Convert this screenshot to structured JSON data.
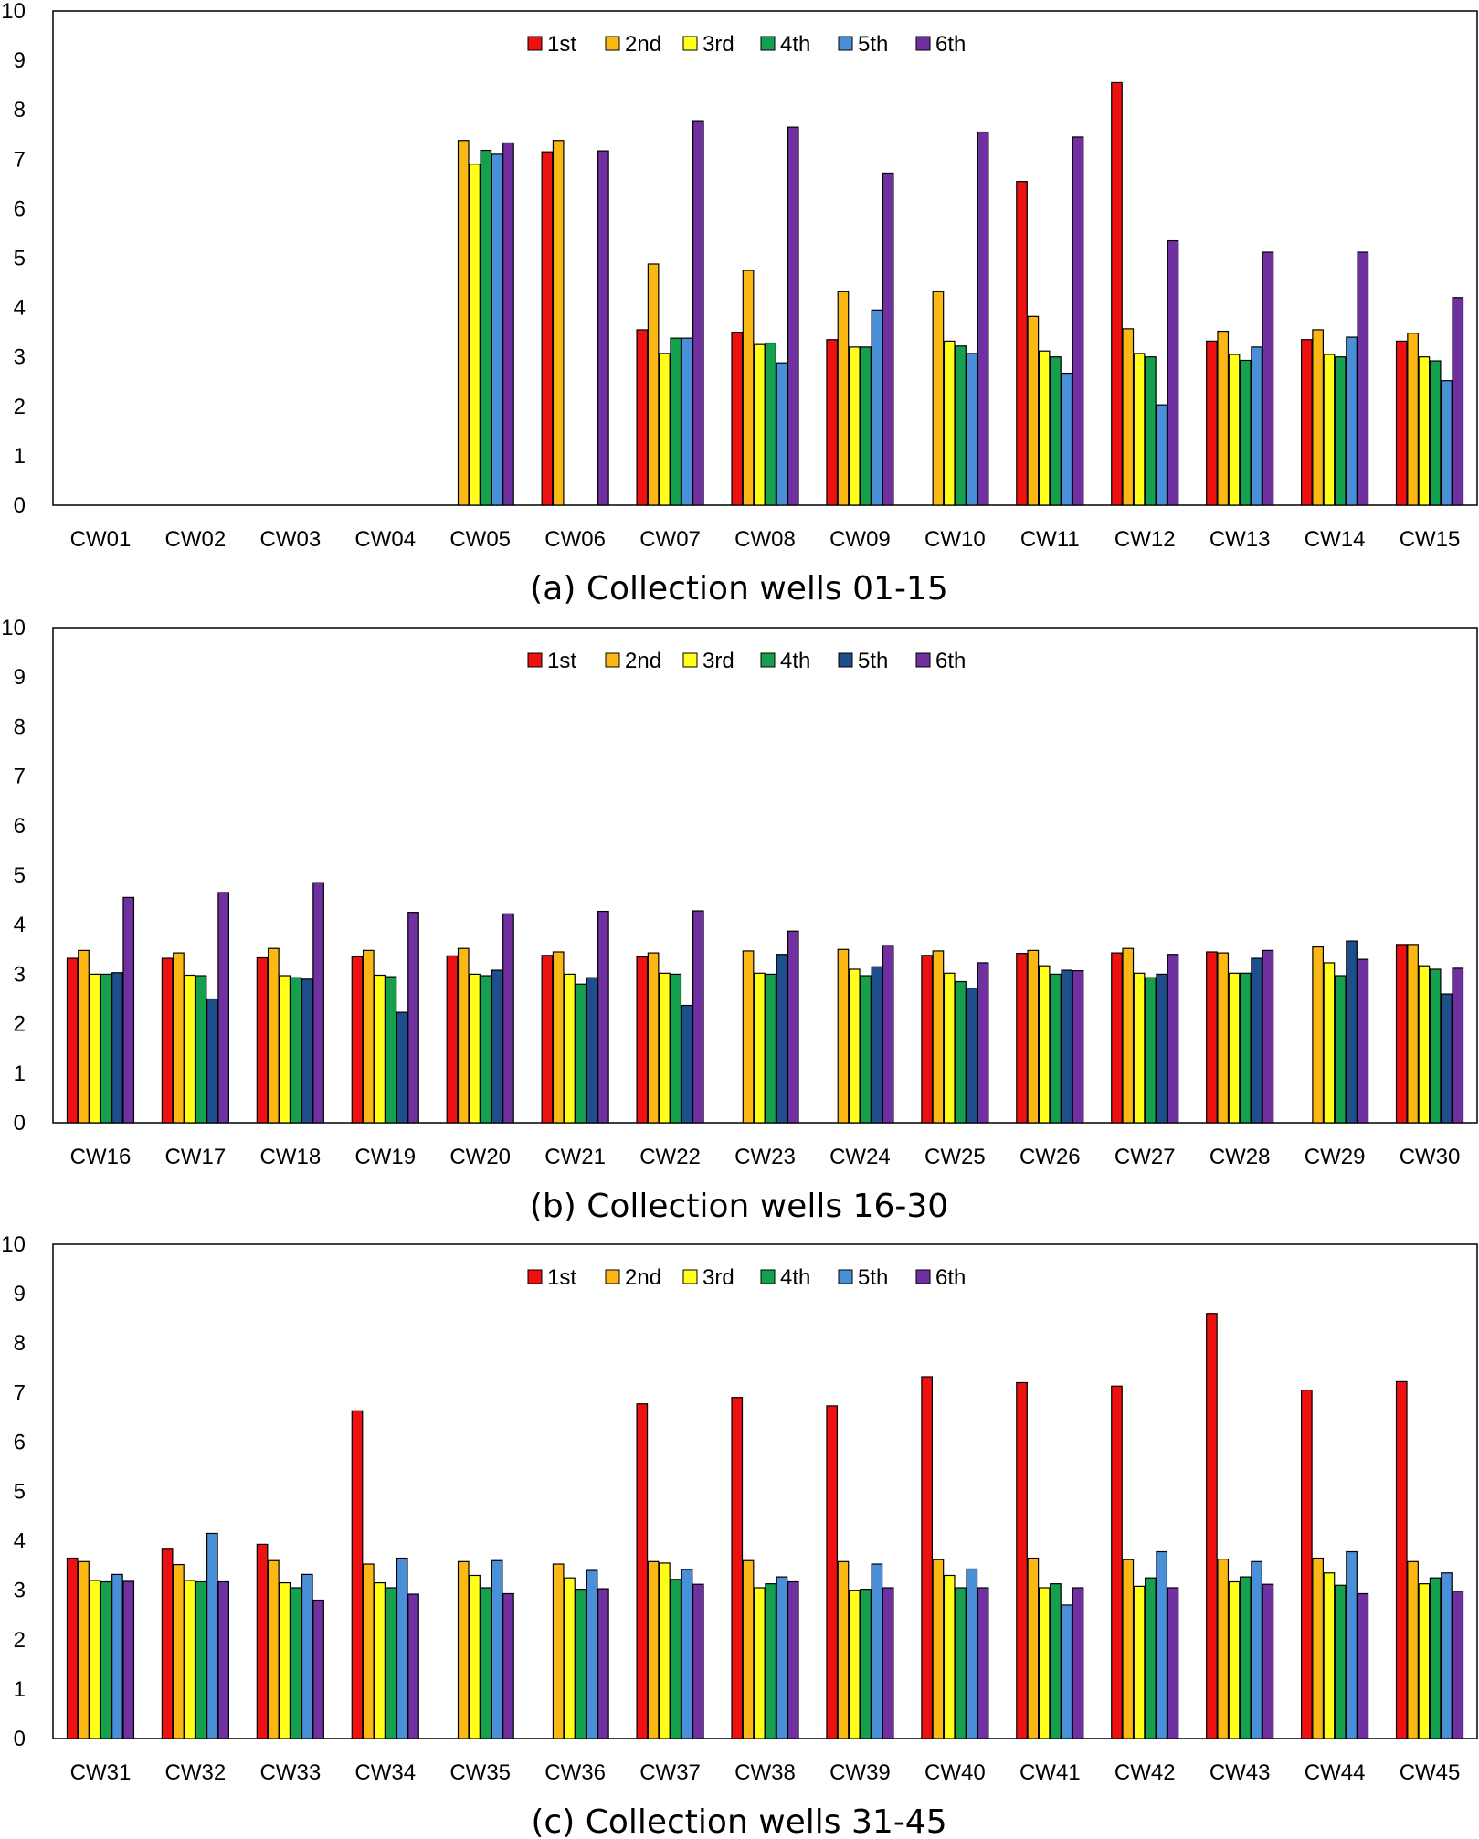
{
  "legend_colors": {
    "1st": "#ee1111",
    "2nd": "#fbb714",
    "3rd": "#ffff19",
    "4th": "#14a04c",
    "5th_light": "#4a90d9",
    "5th_dark": "#1f4e8c",
    "6th": "#7030a0"
  },
  "chart_data": [
    {
      "type": "bar",
      "title": "(a) Collection wells 01-15",
      "ylim": [
        0,
        10
      ],
      "yticks": [
        "0",
        "1",
        "2",
        "3",
        "4",
        "5",
        "6",
        "7",
        "8",
        "9",
        "10"
      ],
      "categories": [
        "CW01",
        "CW02",
        "CW03",
        "CW04",
        "CW05",
        "CW06",
        "CW07",
        "CW08",
        "CW09",
        "CW10",
        "CW11",
        "CW12",
        "CW13",
        "CW14",
        "CW15"
      ],
      "series": [
        {
          "name": "1st",
          "color": "#ee1111",
          "values": [
            null,
            null,
            null,
            null,
            null,
            7.15,
            3.55,
            3.5,
            3.35,
            null,
            6.55,
            8.55,
            3.32,
            3.35,
            3.32
          ]
        },
        {
          "name": "2nd",
          "color": "#fbb714",
          "values": [
            null,
            null,
            null,
            null,
            7.38,
            7.38,
            4.88,
            4.75,
            4.32,
            4.32,
            3.82,
            3.57,
            3.52,
            3.55,
            3.48
          ]
        },
        {
          "name": "3rd",
          "color": "#ffff19",
          "values": [
            null,
            null,
            null,
            null,
            6.9,
            null,
            3.07,
            3.25,
            3.2,
            3.32,
            3.12,
            3.07,
            3.05,
            3.05,
            3.0
          ]
        },
        {
          "name": "4th",
          "color": "#14a04c",
          "values": [
            null,
            null,
            null,
            null,
            7.18,
            null,
            3.38,
            3.28,
            3.2,
            3.22,
            3.0,
            3.0,
            2.93,
            3.0,
            2.92
          ]
        },
        {
          "name": "5th",
          "color": "#4a90d9",
          "values": [
            null,
            null,
            null,
            null,
            7.1,
            null,
            3.38,
            2.88,
            3.95,
            3.07,
            2.67,
            2.03,
            3.2,
            3.4,
            2.52
          ]
        },
        {
          "name": "6th",
          "color": "#7030a0",
          "values": [
            null,
            null,
            null,
            null,
            7.33,
            7.17,
            7.78,
            7.65,
            6.72,
            7.55,
            7.45,
            5.35,
            5.12,
            5.12,
            4.2
          ]
        }
      ]
    },
    {
      "type": "bar",
      "title": "(b) Collection wells 16-30",
      "ylim": [
        0,
        10
      ],
      "yticks": [
        "0",
        "1",
        "2",
        "3",
        "4",
        "5",
        "6",
        "7",
        "8",
        "9",
        "10"
      ],
      "categories": [
        "CW16",
        "CW17",
        "CW18",
        "CW19",
        "CW20",
        "CW21",
        "CW22",
        "CW23",
        "CW24",
        "CW25",
        "CW26",
        "CW27",
        "CW28",
        "CW29",
        "CW30"
      ],
      "series": [
        {
          "name": "1st",
          "color": "#ee1111",
          "values": [
            3.32,
            3.32,
            3.33,
            3.35,
            3.37,
            3.38,
            3.35,
            null,
            null,
            3.38,
            3.42,
            3.43,
            3.45,
            null,
            3.6
          ]
        },
        {
          "name": "2nd",
          "color": "#fbb714",
          "values": [
            3.48,
            3.43,
            3.52,
            3.48,
            3.52,
            3.45,
            3.43,
            3.47,
            3.5,
            3.47,
            3.48,
            3.52,
            3.43,
            3.55,
            3.6
          ]
        },
        {
          "name": "3rd",
          "color": "#ffff19",
          "values": [
            3.0,
            2.98,
            2.97,
            2.98,
            3.0,
            3.0,
            3.02,
            3.02,
            3.1,
            3.02,
            3.17,
            3.02,
            3.02,
            3.23,
            3.17
          ]
        },
        {
          "name": "4th",
          "color": "#14a04c",
          "values": [
            3.0,
            2.97,
            2.93,
            2.95,
            2.97,
            2.8,
            3.0,
            3.0,
            2.97,
            2.85,
            3.0,
            2.93,
            3.02,
            2.97,
            3.1
          ]
        },
        {
          "name": "5th",
          "color": "#1f4e8c",
          "values": [
            3.03,
            2.5,
            2.9,
            2.23,
            3.08,
            2.93,
            2.37,
            3.4,
            3.15,
            2.72,
            3.08,
            3.0,
            3.32,
            3.67,
            2.6
          ]
        },
        {
          "name": "6th",
          "color": "#7030a0",
          "values": [
            4.55,
            4.65,
            4.85,
            4.25,
            4.22,
            4.27,
            4.28,
            3.87,
            3.58,
            3.23,
            3.07,
            3.4,
            3.48,
            3.3,
            3.12
          ]
        }
      ]
    },
    {
      "type": "bar",
      "title": "(c) Collection wells 31-45",
      "ylim": [
        0,
        10
      ],
      "yticks": [
        "0",
        "1",
        "2",
        "3",
        "4",
        "5",
        "6",
        "7",
        "8",
        "9",
        "10"
      ],
      "categories": [
        "CW31",
        "CW32",
        "CW33",
        "CW34",
        "CW35",
        "CW36",
        "CW37",
        "CW38",
        "CW39",
        "CW40",
        "CW41",
        "CW42",
        "CW43",
        "CW44",
        "CW45"
      ],
      "series": [
        {
          "name": "1st",
          "color": "#ee1111",
          "values": [
            3.65,
            3.83,
            3.93,
            6.63,
            null,
            null,
            6.77,
            6.9,
            6.73,
            7.32,
            7.2,
            7.13,
            8.6,
            7.05,
            7.22
          ]
        },
        {
          "name": "2nd",
          "color": "#fbb714",
          "values": [
            3.58,
            3.52,
            3.6,
            3.53,
            3.58,
            3.53,
            3.58,
            3.6,
            3.58,
            3.62,
            3.65,
            3.62,
            3.63,
            3.65,
            3.58
          ]
        },
        {
          "name": "3rd",
          "color": "#ffff19",
          "values": [
            3.2,
            3.2,
            3.15,
            3.15,
            3.3,
            3.25,
            3.55,
            3.05,
            3.0,
            3.3,
            3.05,
            3.08,
            3.17,
            3.35,
            3.13
          ]
        },
        {
          "name": "4th",
          "color": "#14a04c",
          "values": [
            3.17,
            3.17,
            3.05,
            3.05,
            3.05,
            3.02,
            3.22,
            3.13,
            3.02,
            3.05,
            3.13,
            3.25,
            3.27,
            3.1,
            3.25
          ]
        },
        {
          "name": "5th",
          "color": "#4a90d9",
          "values": [
            3.32,
            4.15,
            3.32,
            3.65,
            3.6,
            3.4,
            3.42,
            3.27,
            3.53,
            3.43,
            2.7,
            3.78,
            3.58,
            3.78,
            3.35
          ]
        },
        {
          "name": "6th",
          "color": "#7030a0",
          "values": [
            3.18,
            3.17,
            2.8,
            2.92,
            2.93,
            3.03,
            3.12,
            3.17,
            3.05,
            3.05,
            3.05,
            3.05,
            3.12,
            2.93,
            2.98
          ]
        }
      ]
    }
  ]
}
